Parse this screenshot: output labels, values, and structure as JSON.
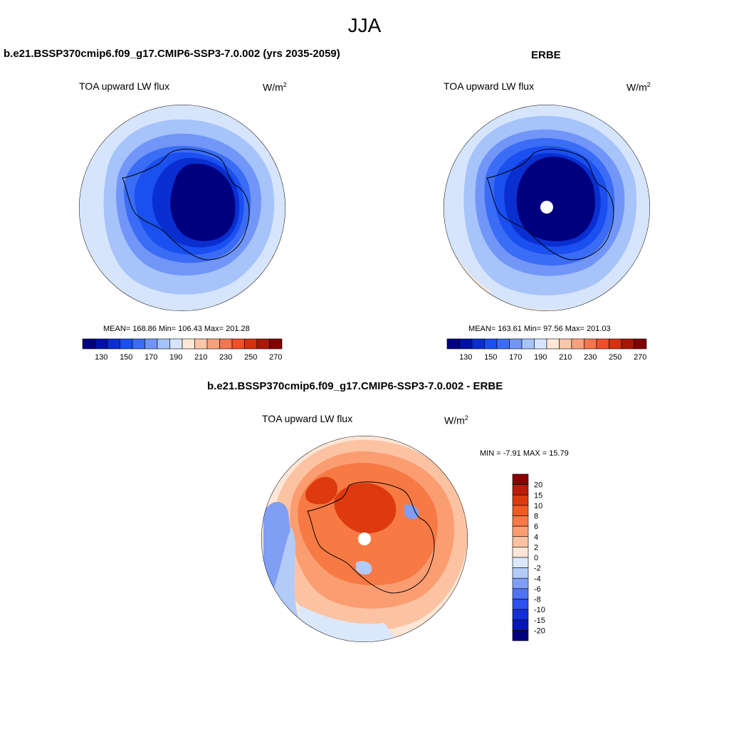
{
  "figure": {
    "season": "JJA"
  },
  "panels": [
    {
      "id": "model",
      "title": "b.e21.BSSP370cmip6.f09_g17.CMIP6-SSP3-7.0.002 (yrs 2035-2059)",
      "variable": "TOA upward LW flux",
      "units_base": "W/m",
      "units_exp": "2",
      "stats_text": "MEAN= 168.86  Min= 106.43  Max= 201.28",
      "stats": {
        "mean": 168.86,
        "min": 106.43,
        "max": 201.28
      }
    },
    {
      "id": "obs",
      "title": "ERBE",
      "variable": "TOA upward LW flux",
      "units_base": "W/m",
      "units_exp": "2",
      "stats_text": "MEAN= 163.61  Min=  97.56  Max= 201.03",
      "stats": {
        "mean": 163.61,
        "min": 97.56,
        "max": 201.03
      }
    },
    {
      "id": "diff",
      "title": "b.e21.BSSP370cmip6.f09_g17.CMIP6-SSP3-7.0.002 - ERBE",
      "variable": "TOA upward LW flux",
      "units_base": "W/m",
      "units_exp": "2",
      "stats_text": "MIN =  -7.91 MAX =  15.79",
      "stats": {
        "min": -7.91,
        "max": 15.79
      }
    }
  ],
  "colorbars": {
    "absolute": {
      "colors": [
        "#00007f",
        "#0010a8",
        "#0a2fd0",
        "#1a4ff0",
        "#3a6cf5",
        "#7196f7",
        "#a6c3fa",
        "#d6e5fc",
        "#fde8d6",
        "#fbc7a8",
        "#f7a27c",
        "#f3764e",
        "#ef4e28",
        "#d5300f",
        "#a81708",
        "#7f0000"
      ],
      "labels": [
        "130",
        "150",
        "170",
        "190",
        "210",
        "230",
        "250",
        "270"
      ]
    },
    "difference": {
      "colors": [
        "#8b0000",
        "#b81c0a",
        "#dd3a10",
        "#f25a24",
        "#f77a44",
        "#fa9e72",
        "#fcc3a3",
        "#fde6d6",
        "#dbe8fc",
        "#b3cbf8",
        "#7f9ef4",
        "#4f74f0",
        "#2c4ff0",
        "#1230d8",
        "#0518b0",
        "#00007f"
      ],
      "labels": [
        "20",
        "15",
        "10",
        "8",
        "6",
        "4",
        "2",
        "0",
        "-2",
        "-4",
        "-6",
        "-8",
        "-10",
        "-15",
        "-20"
      ]
    }
  },
  "map_colors": {
    "ocean_light": "#d6e5fc",
    "ring1": "#a6c3fa",
    "ring2": "#7196f7",
    "ring3": "#3a6cf5",
    "ring4": "#1a4ff0",
    "ring5": "#0a2fd0",
    "core": "#00007f",
    "peach": "#fde8d6",
    "diff_base": "#fcc3a3",
    "diff_mid": "#f77a44",
    "diff_hot": "#dd3a10",
    "diff_cold": "#7f9ef4"
  }
}
